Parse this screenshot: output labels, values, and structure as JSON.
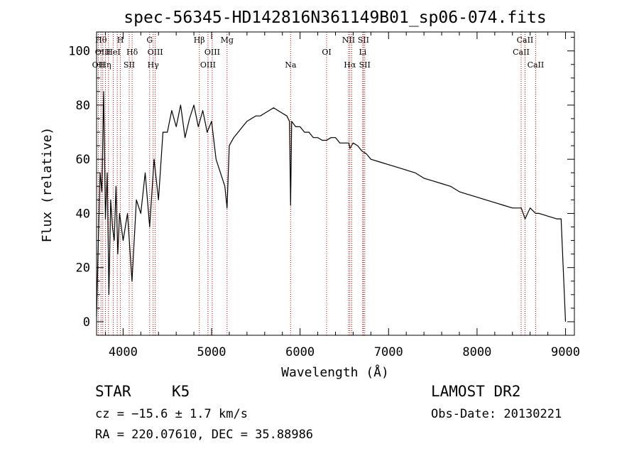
{
  "chart_data": {
    "type": "line",
    "title": "spec-56345-HD142816N361149B01_sp06-074.fits",
    "xlabel": "Wavelength (Å)",
    "ylabel": "Flux (relative)",
    "xlim": [
      3700,
      9100
    ],
    "ylim": [
      -5,
      107
    ],
    "x_ticks": [
      4000,
      5000,
      6000,
      7000,
      8000,
      9000
    ],
    "y_ticks": [
      0,
      20,
      40,
      60,
      80,
      100
    ],
    "grid": false,
    "series": [
      {
        "name": "flux",
        "x": [
          3700,
          3720,
          3740,
          3760,
          3780,
          3800,
          3820,
          3840,
          3860,
          3880,
          3900,
          3920,
          3940,
          3960,
          3980,
          4000,
          4050,
          4100,
          4150,
          4200,
          4250,
          4300,
          4350,
          4400,
          4450,
          4500,
          4550,
          4600,
          4650,
          4700,
          4750,
          4800,
          4850,
          4900,
          4950,
          5000,
          5050,
          5100,
          5150,
          5175,
          5200,
          5250,
          5300,
          5350,
          5400,
          5450,
          5500,
          5550,
          5600,
          5650,
          5700,
          5750,
          5800,
          5850,
          5880,
          5893,
          5905,
          5950,
          6000,
          6050,
          6100,
          6150,
          6200,
          6250,
          6300,
          6350,
          6400,
          6450,
          6500,
          6550,
          6563,
          6600,
          6650,
          6700,
          6750,
          6800,
          6900,
          7000,
          7100,
          7200,
          7300,
          7400,
          7500,
          7600,
          7700,
          7800,
          7900,
          8000,
          8100,
          8200,
          8300,
          8400,
          8500,
          8542,
          8600,
          8662,
          8700,
          8800,
          8900,
          8950,
          9000
        ],
        "values": [
          2,
          30,
          55,
          48,
          85,
          38,
          55,
          10,
          45,
          35,
          30,
          50,
          25,
          40,
          35,
          30,
          40,
          15,
          45,
          40,
          55,
          35,
          60,
          45,
          70,
          70,
          78,
          72,
          80,
          68,
          75,
          80,
          72,
          78,
          70,
          74,
          60,
          55,
          50,
          42,
          65,
          68,
          70,
          72,
          74,
          75,
          76,
          76,
          77,
          78,
          79,
          78,
          77,
          76,
          74,
          43,
          74,
          72,
          72,
          70,
          70,
          68,
          68,
          67,
          67,
          68,
          68,
          66,
          66,
          66,
          64,
          66,
          65,
          63,
          62,
          60,
          59,
          58,
          57,
          56,
          55,
          53,
          52,
          51,
          50,
          48,
          47,
          46,
          45,
          44,
          43,
          42,
          42,
          38,
          42,
          40,
          40,
          39,
          38,
          38,
          0
        ]
      }
    ],
    "spectral_lines": [
      {
        "x": 3720,
        "label": "OII",
        "row": 2
      },
      {
        "x": 3750,
        "label": "Hθ",
        "row": 0
      },
      {
        "x": 3770,
        "label": "OIII",
        "row": 1
      },
      {
        "x": 3800,
        "label": "Hη",
        "row": 2
      },
      {
        "x": 3835,
        "label": "",
        "row": 0
      },
      {
        "x": 3889,
        "label": "HeI",
        "row": 1
      },
      {
        "x": 3934,
        "label": "",
        "row": 0
      },
      {
        "x": 3969,
        "label": "H",
        "row": 0
      },
      {
        "x": 4069,
        "label": "SII",
        "row": 2
      },
      {
        "x": 4102,
        "label": "Hδ",
        "row": 1
      },
      {
        "x": 4300,
        "label": "G",
        "row": 0
      },
      {
        "x": 4340,
        "label": "Hγ",
        "row": 2
      },
      {
        "x": 4363,
        "label": "OIII",
        "row": 1
      },
      {
        "x": 4861,
        "label": "Hβ",
        "row": 0
      },
      {
        "x": 4959,
        "label": "OIII",
        "row": 2
      },
      {
        "x": 5007,
        "label": "OIII",
        "row": 1
      },
      {
        "x": 5175,
        "label": "Mg",
        "row": 0
      },
      {
        "x": 5893,
        "label": "Na",
        "row": 2
      },
      {
        "x": 6300,
        "label": "OI",
        "row": 1
      },
      {
        "x": 6548,
        "label": "NII",
        "row": 0
      },
      {
        "x": 6563,
        "label": "Hα",
        "row": 2
      },
      {
        "x": 6584,
        "label": "",
        "row": 0
      },
      {
        "x": 6708,
        "label": "Li",
        "row": 1
      },
      {
        "x": 6716,
        "label": "SII",
        "row": 0
      },
      {
        "x": 6731,
        "label": "SII",
        "row": 2
      },
      {
        "x": 8498,
        "label": "CaII",
        "row": 1
      },
      {
        "x": 8542,
        "label": "CaII",
        "row": 0
      },
      {
        "x": 8662,
        "label": "CaII",
        "row": 2
      }
    ]
  },
  "info": {
    "object_class": "STAR",
    "subclass": "K5",
    "redshift": "cz = −15.6 ± 1.7 km/s",
    "coords": "RA = 220.07610, DEC =  35.88986",
    "survey": "LAMOST DR2",
    "obs_date": "Obs-Date: 20130221"
  }
}
